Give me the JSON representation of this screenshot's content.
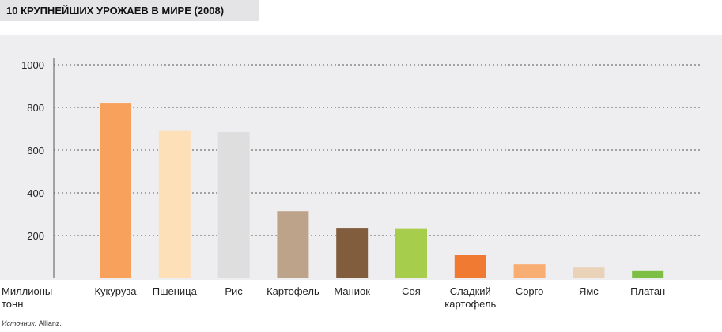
{
  "title": "10 КРУПНЕЙШИХ УРОЖАЕВ В МИРЕ (2008)",
  "source": {
    "label": "Источник:",
    "value": "Allianz."
  },
  "chart_data": {
    "type": "bar",
    "title": "10 КРУПНЕЙШИХ УРОЖАЕВ В МИРЕ (2008)",
    "ylabel": "Миллионы тонн",
    "ylabel_lines": [
      "Миллионы",
      "тонн"
    ],
    "ylim": [
      0,
      1000
    ],
    "yticks": [
      200,
      400,
      600,
      800,
      1000
    ],
    "grid": true,
    "categories": [
      "Кукуруза",
      "Пшеница",
      "Рис",
      "Картофель",
      "Маниок",
      "Соя",
      "Сладкий картофель",
      "Сорго",
      "Ямс",
      "Платан"
    ],
    "category_lines": [
      [
        "Кукуруза"
      ],
      [
        "Пшеница"
      ],
      [
        "Рис"
      ],
      [
        "Картофель"
      ],
      [
        "Маниок"
      ],
      [
        "Соя"
      ],
      [
        "Сладкий",
        "картофель"
      ],
      [
        "Сорго"
      ],
      [
        "Ямс"
      ],
      [
        "Платан"
      ]
    ],
    "values": [
      822,
      690,
      685,
      314,
      233,
      231,
      110,
      66,
      51,
      34
    ],
    "colors": [
      "#f7a15c",
      "#fde0b8",
      "#dededf",
      "#bea38b",
      "#815c3d",
      "#a6ce4c",
      "#f07a31",
      "#f8ad72",
      "#ead2b8",
      "#7dbf44"
    ]
  }
}
